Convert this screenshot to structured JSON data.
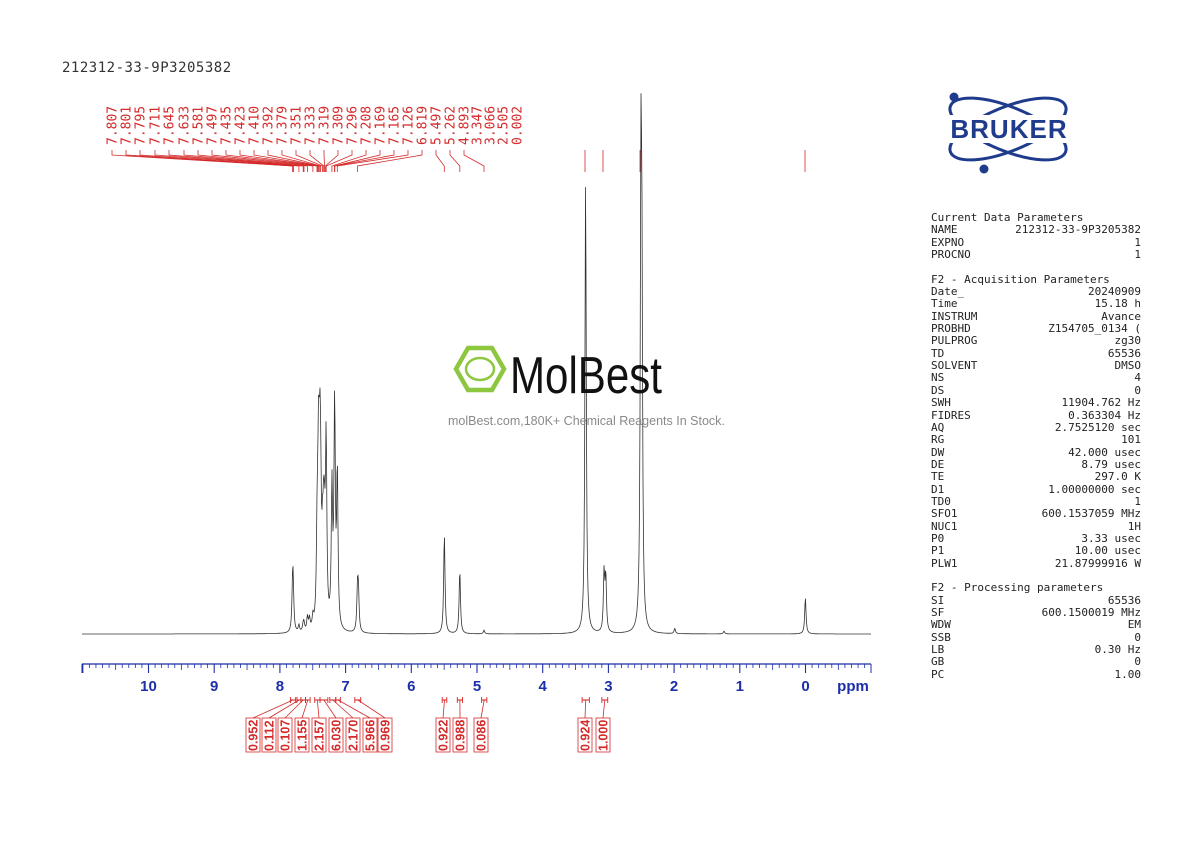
{
  "sample_name": "212312-33-9P3205382",
  "logo": {
    "brand": "BRUKER"
  },
  "watermark": {
    "brand": "MolBest",
    "tagline": "molBest.com,180K+ Chemical Reagents In Stock."
  },
  "colors": {
    "peak_labels": "#d42a2a",
    "axis": "#1c2fa8",
    "spectrum": "#333333",
    "logo": "#1f3c8c",
    "watermark_green": "#8dc63f"
  },
  "parameters": [
    {
      "title": "Current Data Parameters",
      "rows": [
        [
          "NAME",
          "212312-33-9P3205382"
        ],
        [
          "EXPNO",
          "1"
        ],
        [
          "PROCNO",
          "1"
        ]
      ]
    },
    {
      "title": "F2 - Acquisition Parameters",
      "rows": [
        [
          "Date_",
          "20240909"
        ],
        [
          "Time",
          "15.18 h"
        ],
        [
          "INSTRUM",
          "Avance"
        ],
        [
          "PROBHD",
          "Z154705_0134 ("
        ],
        [
          "PULPROG",
          "zg30"
        ],
        [
          "TD",
          "65536"
        ],
        [
          "SOLVENT",
          "DMSO"
        ],
        [
          "NS",
          "4"
        ],
        [
          "DS",
          "0"
        ],
        [
          "SWH",
          "11904.762 Hz"
        ],
        [
          "FIDRES",
          "0.363304 Hz"
        ],
        [
          "AQ",
          "2.7525120 sec"
        ],
        [
          "RG",
          "101"
        ],
        [
          "DW",
          "42.000 usec"
        ],
        [
          "DE",
          "8.79 usec"
        ],
        [
          "TE",
          "297.0 K"
        ],
        [
          "D1",
          "1.00000000 sec"
        ],
        [
          "TD0",
          "1"
        ],
        [
          "SFO1",
          "600.1537059 MHz"
        ],
        [
          "NUC1",
          "1H"
        ],
        [
          "P0",
          "3.33 usec"
        ],
        [
          "P1",
          "10.00 usec"
        ],
        [
          "PLW1",
          "21.87999916 W"
        ]
      ]
    },
    {
      "title": "F2 - Processing parameters",
      "rows": [
        [
          "SI",
          "65536"
        ],
        [
          "SF",
          "600.1500019 MHz"
        ],
        [
          "WDW",
          "EM"
        ],
        [
          "SSB",
          "0"
        ],
        [
          "LB",
          "0.30 Hz"
        ],
        [
          "GB",
          "0"
        ],
        [
          "PC",
          "1.00"
        ]
      ]
    }
  ],
  "chart_data": {
    "type": "line",
    "xlabel": "ppm",
    "xlim": [
      12.0,
      -1.0
    ],
    "x_reversed": true,
    "ticks": [
      "10",
      "9",
      "8",
      "7",
      "6",
      "5",
      "4",
      "3",
      "2",
      "1",
      "0"
    ],
    "peak_labels": [
      "7.807",
      "7.801",
      "7.795",
      "7.711",
      "7.645",
      "7.633",
      "7.581",
      "7.497",
      "7.435",
      "7.423",
      "7.410",
      "7.392",
      "7.379",
      "7.351",
      "7.333",
      "7.319",
      "7.309",
      "7.296",
      "7.208",
      "7.169",
      "7.165",
      "7.126",
      "6.819",
      "5.497",
      "5.262",
      "4.893",
      "3.347",
      "3.066",
      "2.505",
      "0.002"
    ],
    "integrals": [
      {
        "value": "0.952",
        "from": 7.84,
        "to": 7.76
      },
      {
        "value": "0.112",
        "from": 7.74,
        "to": 7.68
      },
      {
        "value": "0.107",
        "from": 7.68,
        "to": 7.61
      },
      {
        "value": "1.155",
        "from": 7.61,
        "to": 7.54
      },
      {
        "value": "2.157",
        "from": 7.47,
        "to": 7.39
      },
      {
        "value": "6.030",
        "from": 7.39,
        "to": 7.27
      },
      {
        "value": "2.170",
        "from": 7.24,
        "to": 7.15
      },
      {
        "value": "5.966",
        "from": 7.15,
        "to": 7.08
      },
      {
        "value": "0.969",
        "from": 6.86,
        "to": 6.77
      },
      {
        "value": "0.922",
        "from": 5.53,
        "to": 5.46
      },
      {
        "value": "0.988",
        "from": 5.3,
        "to": 5.22
      },
      {
        "value": "0.086",
        "from": 4.93,
        "to": 4.85
      },
      {
        "value": "0.924",
        "from": 3.4,
        "to": 3.29
      },
      {
        "value": "1.000",
        "from": 3.1,
        "to": 3.01
      }
    ],
    "peaks": [
      {
        "ppm": 7.807,
        "h": 0.09
      },
      {
        "ppm": 7.798,
        "h": 0.08
      },
      {
        "ppm": 7.711,
        "h": 0.015
      },
      {
        "ppm": 7.645,
        "h": 0.015
      },
      {
        "ppm": 7.633,
        "h": 0.015
      },
      {
        "ppm": 7.581,
        "h": 0.03
      },
      {
        "ppm": 7.55,
        "h": 0.025
      },
      {
        "ppm": 7.497,
        "h": 0.025
      },
      {
        "ppm": 7.435,
        "h": 0.15
      },
      {
        "ppm": 7.423,
        "h": 0.12
      },
      {
        "ppm": 7.41,
        "h": 0.32
      },
      {
        "ppm": 7.392,
        "h": 0.29
      },
      {
        "ppm": 7.379,
        "h": 0.22
      },
      {
        "ppm": 7.351,
        "h": 0.14
      },
      {
        "ppm": 7.333,
        "h": 0.18
      },
      {
        "ppm": 7.319,
        "h": 0.12
      },
      {
        "ppm": 7.296,
        "h": 0.4
      },
      {
        "ppm": 7.208,
        "h": 0.3
      },
      {
        "ppm": 7.169,
        "h": 0.26
      },
      {
        "ppm": 7.165,
        "h": 0.24
      },
      {
        "ppm": 7.126,
        "h": 0.34
      },
      {
        "ppm": 6.819,
        "h": 0.09
      },
      {
        "ppm": 6.805,
        "h": 0.08
      },
      {
        "ppm": 5.497,
        "h": 0.22
      },
      {
        "ppm": 5.262,
        "h": 0.14
      },
      {
        "ppm": 4.893,
        "h": 0.008
      },
      {
        "ppm": 3.347,
        "h": 1.0
      },
      {
        "ppm": 3.066,
        "h": 0.13
      },
      {
        "ppm": 3.04,
        "h": 0.12
      },
      {
        "ppm": 2.505,
        "h": 0.92
      },
      {
        "ppm": 2.49,
        "h": 0.65
      },
      {
        "ppm": 0.002,
        "h": 0.08
      },
      {
        "ppm": 1.24,
        "h": 0.006
      },
      {
        "ppm": 1.99,
        "h": 0.012
      }
    ]
  }
}
